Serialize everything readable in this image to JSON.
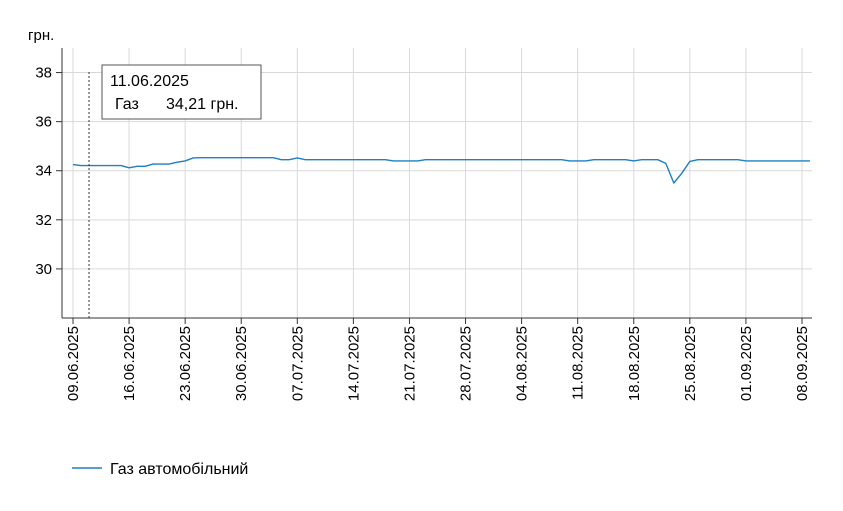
{
  "chart_data": {
    "type": "line",
    "ylabel": "грн.",
    "ylim": [
      28,
      39
    ],
    "yticks": [
      30,
      32,
      34,
      36,
      38
    ],
    "grid": true,
    "legend_position": "bottom-left",
    "x_start": "09.06.2025",
    "x_end": "09.09.2025",
    "xtick_labels": [
      "09.06.2025",
      "16.06.2025",
      "23.06.2025",
      "30.06.2025",
      "07.07.2025",
      "14.07.2025",
      "21.07.2025",
      "28.07.2025",
      "04.08.2025",
      "11.08.2025",
      "18.08.2025",
      "25.08.2025",
      "01.09.2025",
      "08.09.2025"
    ],
    "series": [
      {
        "name": "Газ автомобільний",
        "color": "#1f7fc0",
        "points": [
          [
            "09.06.2025",
            34.25
          ],
          [
            "10.06.2025",
            34.21
          ],
          [
            "11.06.2025",
            34.21
          ],
          [
            "12.06.2025",
            34.21
          ],
          [
            "13.06.2025",
            34.21
          ],
          [
            "14.06.2025",
            34.21
          ],
          [
            "15.06.2025",
            34.21
          ],
          [
            "16.06.2025",
            34.12
          ],
          [
            "17.06.2025",
            34.18
          ],
          [
            "18.06.2025",
            34.18
          ],
          [
            "19.06.2025",
            34.27
          ],
          [
            "20.06.2025",
            34.27
          ],
          [
            "21.06.2025",
            34.27
          ],
          [
            "22.06.2025",
            34.35
          ],
          [
            "23.06.2025",
            34.4
          ],
          [
            "24.06.2025",
            34.52
          ],
          [
            "25.06.2025",
            34.53
          ],
          [
            "26.06.2025",
            34.53
          ],
          [
            "27.06.2025",
            34.53
          ],
          [
            "28.06.2025",
            34.53
          ],
          [
            "29.06.2025",
            34.53
          ],
          [
            "30.06.2025",
            34.53
          ],
          [
            "01.07.2025",
            34.53
          ],
          [
            "02.07.2025",
            34.53
          ],
          [
            "03.07.2025",
            34.53
          ],
          [
            "04.07.2025",
            34.53
          ],
          [
            "05.07.2025",
            34.45
          ],
          [
            "06.07.2025",
            34.45
          ],
          [
            "07.07.2025",
            34.52
          ],
          [
            "08.07.2025",
            34.45
          ],
          [
            "09.07.2025",
            34.45
          ],
          [
            "10.07.2025",
            34.45
          ],
          [
            "11.07.2025",
            34.45
          ],
          [
            "12.07.2025",
            34.45
          ],
          [
            "13.07.2025",
            34.45
          ],
          [
            "14.07.2025",
            34.45
          ],
          [
            "15.07.2025",
            34.45
          ],
          [
            "16.07.2025",
            34.45
          ],
          [
            "17.07.2025",
            34.45
          ],
          [
            "18.07.2025",
            34.45
          ],
          [
            "19.07.2025",
            34.4
          ],
          [
            "20.07.2025",
            34.4
          ],
          [
            "21.07.2025",
            34.4
          ],
          [
            "22.07.2025",
            34.4
          ],
          [
            "23.07.2025",
            34.45
          ],
          [
            "24.07.2025",
            34.45
          ],
          [
            "25.07.2025",
            34.45
          ],
          [
            "26.07.2025",
            34.45
          ],
          [
            "27.07.2025",
            34.45
          ],
          [
            "28.07.2025",
            34.45
          ],
          [
            "29.07.2025",
            34.45
          ],
          [
            "30.07.2025",
            34.45
          ],
          [
            "31.07.2025",
            34.45
          ],
          [
            "01.08.2025",
            34.45
          ],
          [
            "02.08.2025",
            34.45
          ],
          [
            "03.08.2025",
            34.45
          ],
          [
            "04.08.2025",
            34.45
          ],
          [
            "05.08.2025",
            34.45
          ],
          [
            "06.08.2025",
            34.45
          ],
          [
            "07.08.2025",
            34.45
          ],
          [
            "08.08.2025",
            34.45
          ],
          [
            "09.08.2025",
            34.45
          ],
          [
            "10.08.2025",
            34.4
          ],
          [
            "11.08.2025",
            34.4
          ],
          [
            "12.08.2025",
            34.4
          ],
          [
            "13.08.2025",
            34.45
          ],
          [
            "14.08.2025",
            34.45
          ],
          [
            "15.08.2025",
            34.45
          ],
          [
            "16.08.2025",
            34.45
          ],
          [
            "17.08.2025",
            34.45
          ],
          [
            "18.08.2025",
            34.4
          ],
          [
            "19.08.2025",
            34.45
          ],
          [
            "20.08.2025",
            34.45
          ],
          [
            "21.08.2025",
            34.45
          ],
          [
            "22.08.2025",
            34.3
          ],
          [
            "23.08.2025",
            33.5
          ],
          [
            "24.08.2025",
            33.9
          ],
          [
            "25.08.2025",
            34.38
          ],
          [
            "26.08.2025",
            34.45
          ],
          [
            "27.08.2025",
            34.45
          ],
          [
            "28.08.2025",
            34.45
          ],
          [
            "29.08.2025",
            34.45
          ],
          [
            "30.08.2025",
            34.45
          ],
          [
            "31.08.2025",
            34.45
          ],
          [
            "01.09.2025",
            34.4
          ],
          [
            "02.09.2025",
            34.4
          ],
          [
            "03.09.2025",
            34.4
          ],
          [
            "04.09.2025",
            34.4
          ],
          [
            "05.09.2025",
            34.4
          ],
          [
            "06.09.2025",
            34.4
          ],
          [
            "07.09.2025",
            34.4
          ],
          [
            "08.09.2025",
            34.4
          ],
          [
            "09.09.2025",
            34.4
          ]
        ]
      }
    ],
    "tooltip": {
      "date": "11.06.2025",
      "series_name": "Газ",
      "value": "34,21 грн."
    }
  }
}
